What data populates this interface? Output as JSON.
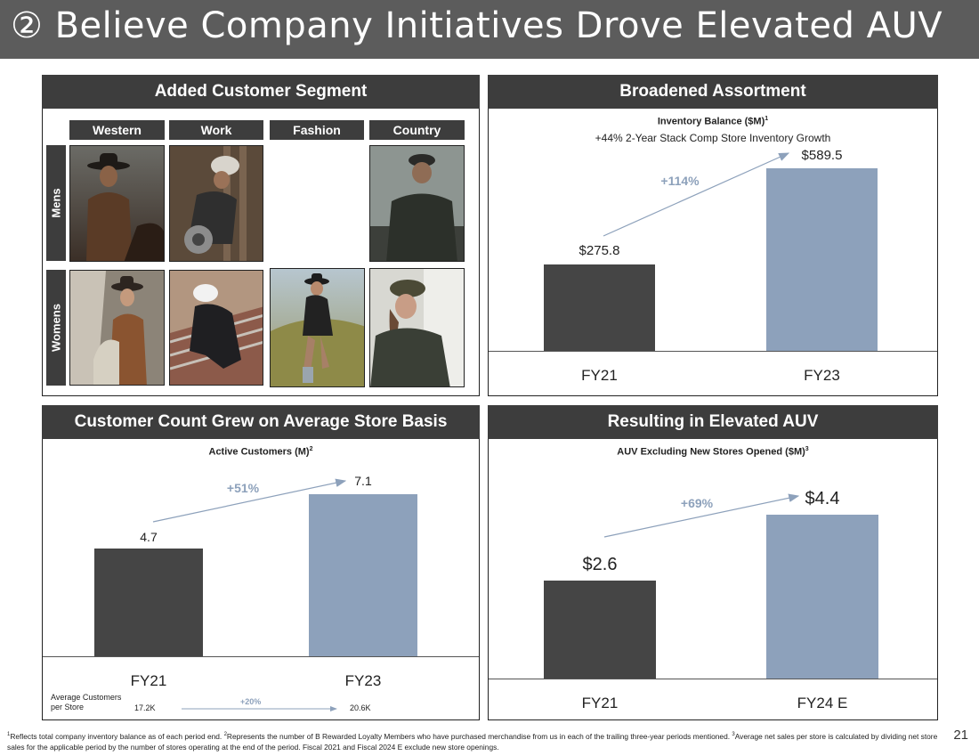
{
  "title": "② Believe Company Initiatives Drove Elevated AUV",
  "segment_panel": {
    "header": "Added Customer Segment",
    "columns": [
      "Western",
      "Work",
      "Fashion",
      "Country"
    ],
    "rows": [
      "Mens",
      "Womens"
    ]
  },
  "assortment_panel": {
    "header": "Broadened Assortment",
    "chart_title": "Inventory Balance ($M)",
    "chart_title_sup": "1",
    "chart_subtitle": "+44% 2-Year Stack Comp Store Inventory Growth",
    "growth_label": "+114%"
  },
  "customers_panel": {
    "header": "Customer Count Grew on Average Store Basis",
    "chart_title": "Active Customers (M)",
    "chart_title_sup": "2",
    "growth_label": "+51%",
    "avg_label_line1": "Average Customers",
    "avg_label_line2": "per Store",
    "avg_fy21": "17.2K",
    "avg_fy23": "20.6K",
    "avg_growth": "+20%"
  },
  "auv_panel": {
    "header": "Resulting in Elevated AUV",
    "chart_title": "AUV Excluding New Stores Opened ($M)",
    "chart_title_sup": "3",
    "growth_label": "+69%"
  },
  "chart_data": [
    {
      "type": "bar",
      "title": "Inventory Balance ($M)",
      "subtitle": "+44% 2-Year Stack Comp Store Inventory Growth",
      "categories": [
        "FY21",
        "FY23"
      ],
      "values": [
        275.8,
        589.5
      ],
      "value_labels": [
        "$275.8",
        "$589.5"
      ],
      "colors": [
        "#454545",
        "#8da1bb"
      ],
      "annotation": "+114%",
      "ylim": [
        0,
        620
      ]
    },
    {
      "type": "bar",
      "title": "Active Customers (M)",
      "categories": [
        "FY21",
        "FY23"
      ],
      "values": [
        4.7,
        7.1
      ],
      "value_labels": [
        "4.7",
        "7.1"
      ],
      "colors": [
        "#454545",
        "#8da1bb"
      ],
      "annotation": "+51%",
      "ylim": [
        0,
        7.5
      ]
    },
    {
      "type": "bar",
      "title": "AUV Excluding New Stores Opened ($M)",
      "categories": [
        "FY21",
        "FY24 E"
      ],
      "values": [
        2.6,
        4.4
      ],
      "value_labels": [
        "$2.6",
        "$4.4"
      ],
      "colors": [
        "#454545",
        "#8da1bb"
      ],
      "annotation": "+69%",
      "ylim": [
        0,
        4.6
      ]
    }
  ],
  "footnote": {
    "sup1": "1",
    "text1": "Reflects total company inventory balance as of each period end. ",
    "sup2": "2",
    "text2": "Represents the number of B Rewarded Loyalty Members who have purchased merchandise from us in each of the trailing three-year periods mentioned. ",
    "sup3": "3",
    "text3": "Average net sales per store is calculated by dividing net store sales for the applicable period by the number of stores operating at the end of the period. Fiscal 2021 and Fiscal 2024 E exclude new store openings."
  },
  "page_number": "21"
}
